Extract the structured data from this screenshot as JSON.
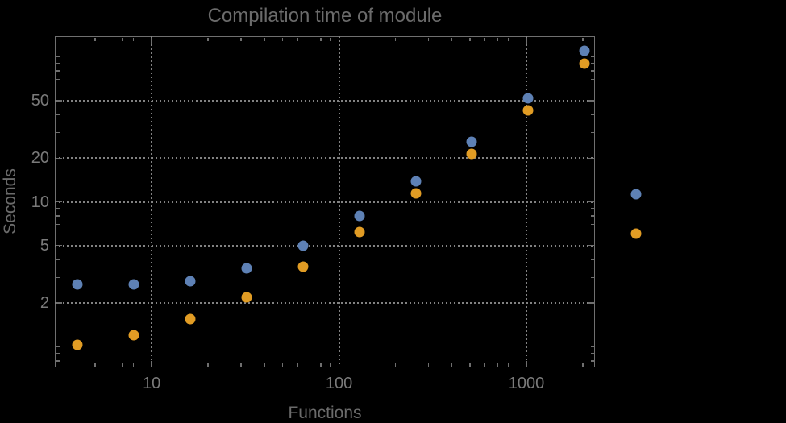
{
  "window": {
    "background_color": "#000000"
  },
  "colors": {
    "frame": "#6f6f6f",
    "grid": "#828282",
    "tick_label": "#7a7a7a",
    "title_label": "#6b6b6b",
    "series_blue": "#5e81b5",
    "series_orange": "#e19c24"
  },
  "chart_data": {
    "type": "scatter",
    "title": "Compilation time of module",
    "xlabel": "Functions",
    "ylabel": "Seconds",
    "x_scale": "log",
    "y_scale": "log",
    "xlim": [
      3.04,
      2320
    ],
    "ylim": [
      0.72,
      139
    ],
    "grid": "dotted gridlines at labeled major ticks only",
    "x_ticks": [
      {
        "value": 10,
        "label": "10"
      },
      {
        "value": 100,
        "label": "100"
      },
      {
        "value": 1000,
        "label": "1000"
      }
    ],
    "y_ticks": [
      {
        "value": 2,
        "label": "2"
      },
      {
        "value": 5,
        "label": "5"
      },
      {
        "value": 10,
        "label": "10"
      },
      {
        "value": 20,
        "label": "20"
      },
      {
        "value": 50,
        "label": "50"
      }
    ],
    "x": [
      4,
      8,
      16,
      32,
      64,
      128,
      256,
      512,
      1024,
      2048
    ],
    "series": [
      {
        "name": "series-blue",
        "color": "#5e81b5",
        "values": [
          2.7,
          2.7,
          2.85,
          3.5,
          5.0,
          8.0,
          13.8,
          26,
          52,
          110
        ]
      },
      {
        "name": "series-orange",
        "color": "#e19c24",
        "values": [
          1.03,
          1.2,
          1.55,
          2.2,
          3.55,
          6.2,
          11.5,
          21.5,
          43,
          90
        ]
      }
    ],
    "legend": {
      "position": "outside-right",
      "markers": [
        {
          "series": "series-blue",
          "color": "#5e81b5"
        },
        {
          "series": "series-orange",
          "color": "#e19c24"
        }
      ]
    }
  }
}
